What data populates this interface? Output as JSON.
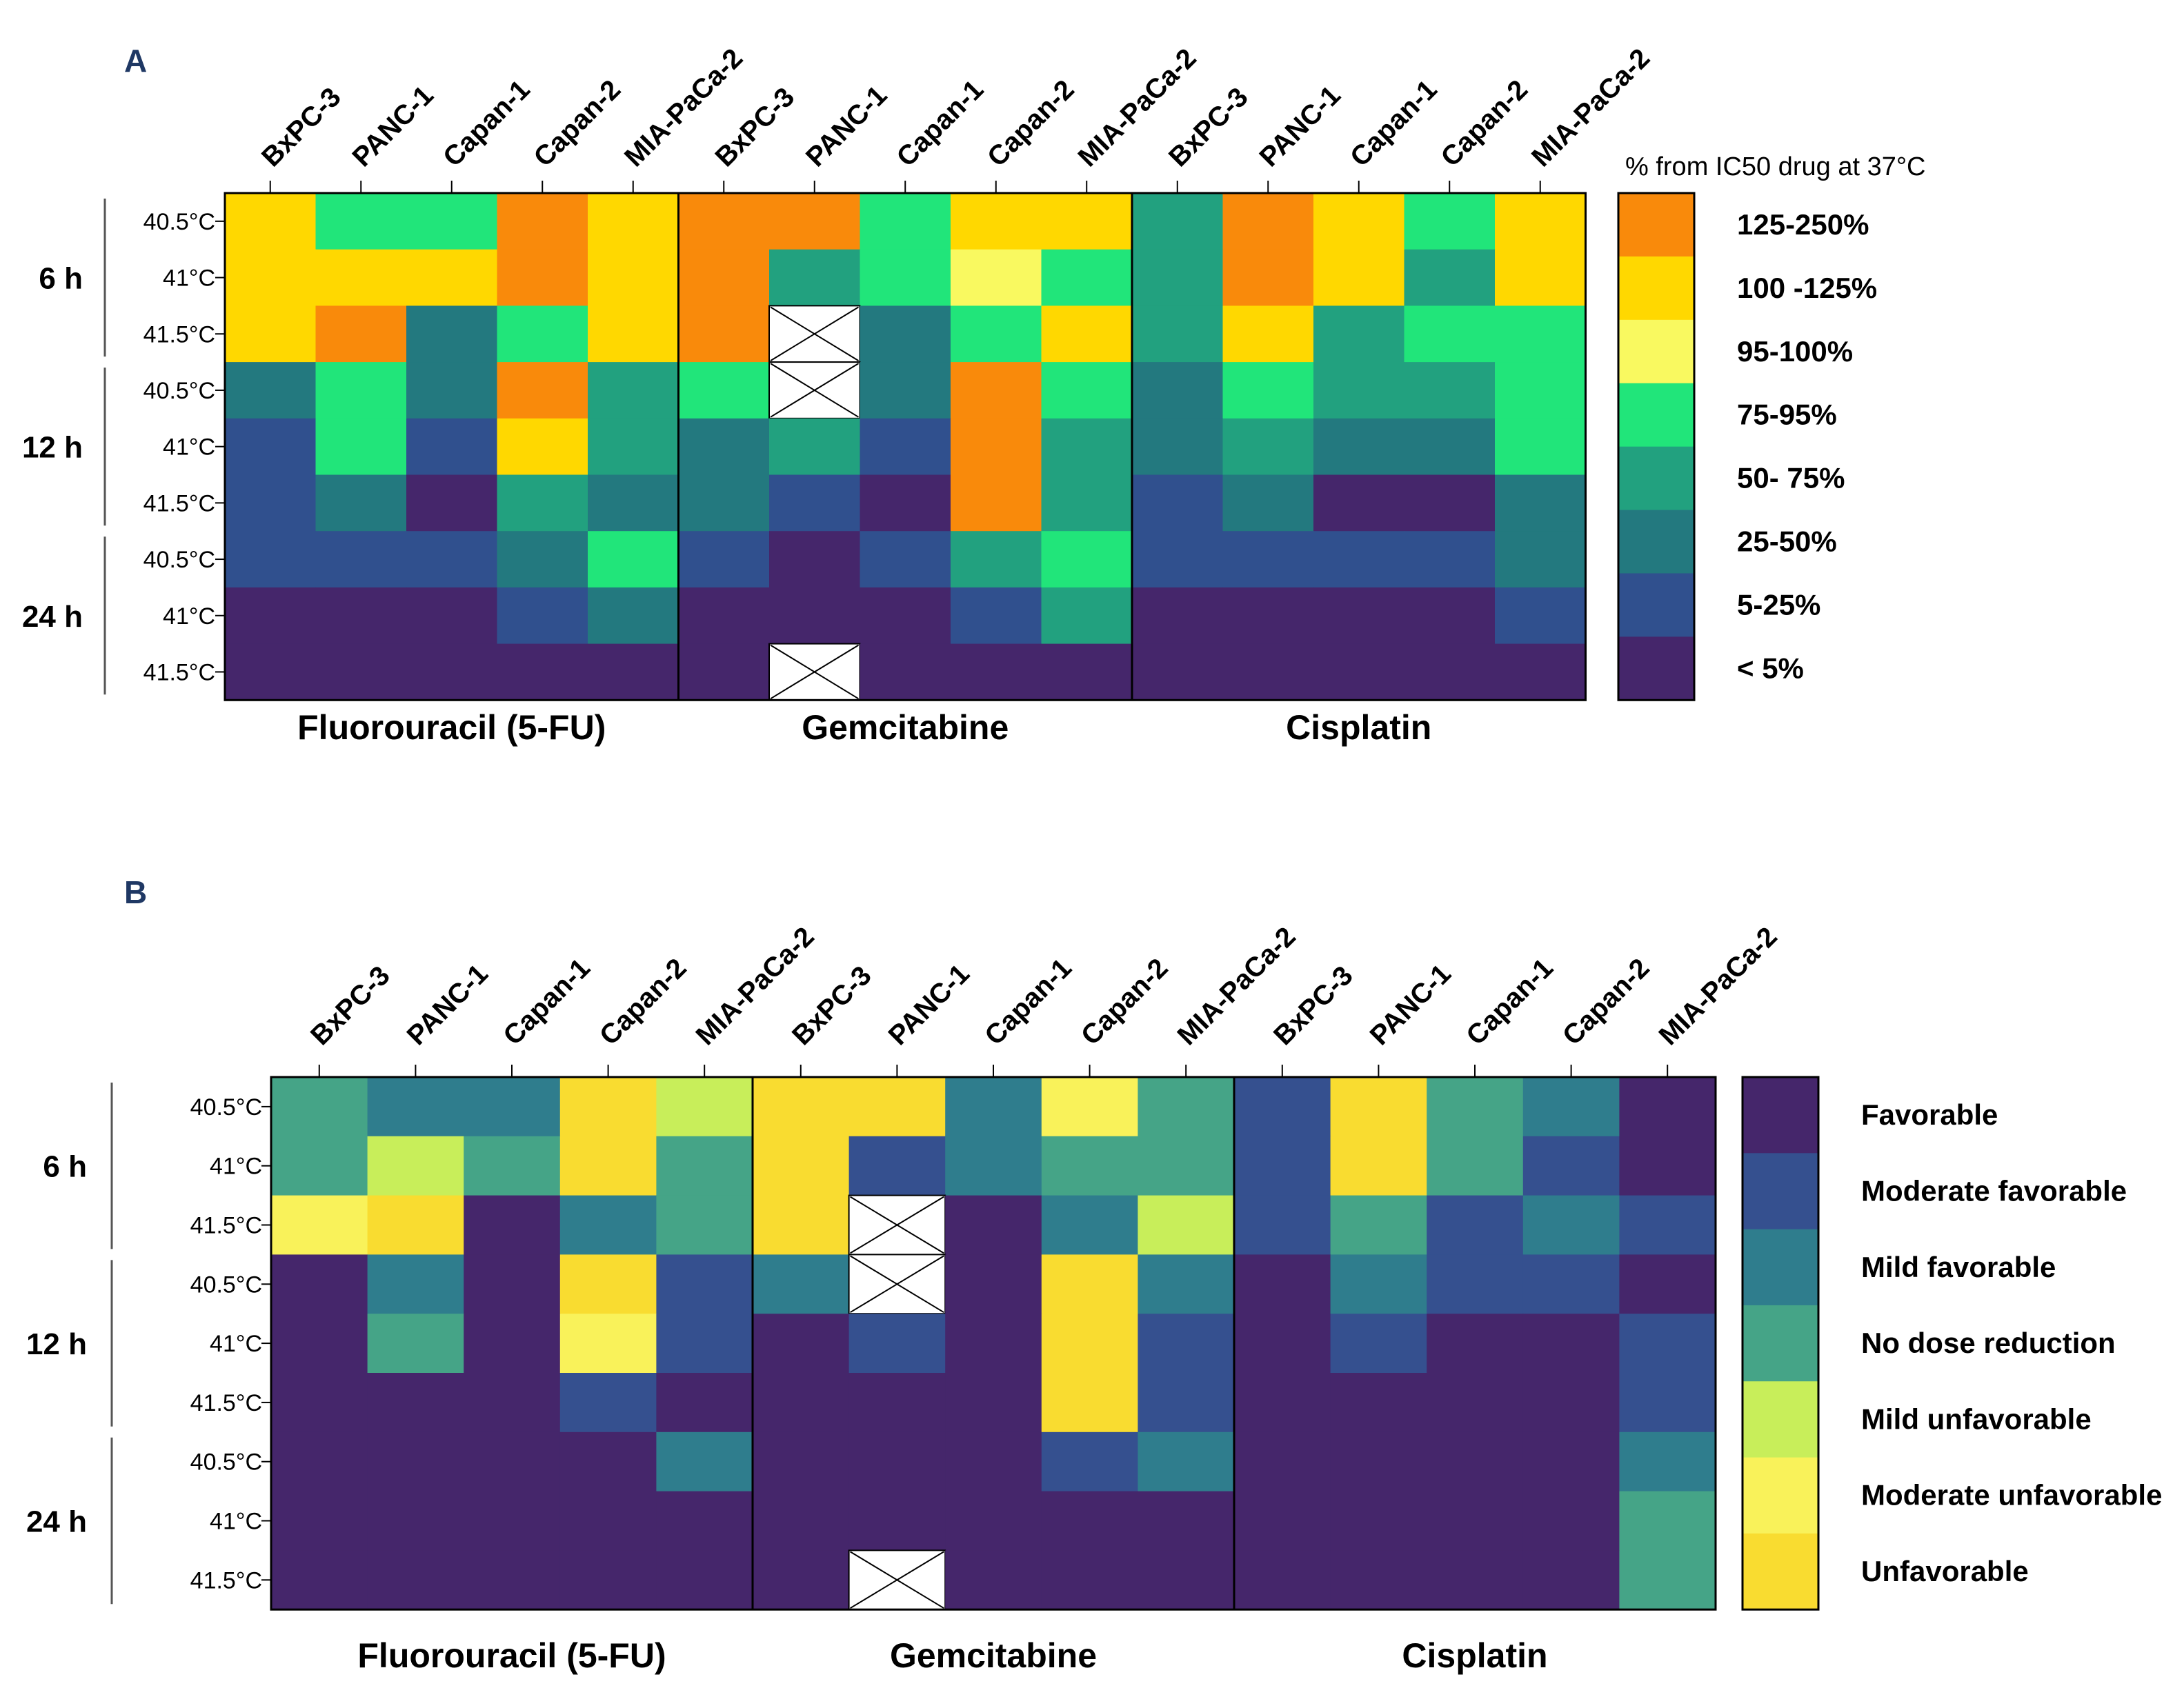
{
  "chart_data": [
    {
      "type": "heatmap",
      "panel": "A",
      "legend_title": "% from IC50 drug at 37°C",
      "legend_categories": [
        "125-250%",
        "100 -125%",
        "95-100%",
        "75-95%",
        "50- 75%",
        "25-50%",
        "5-25%",
        "< 5%"
      ],
      "legend_colors": [
        "#F98A0B",
        "#FFD800",
        "#F9F960",
        "#21E57A",
        "#22A17F",
        "#23797F",
        "#30508E",
        "#45266B"
      ],
      "drugs": [
        "Fluorouracil (5-FU)",
        "Gemcitabine",
        "Cisplatin"
      ],
      "cell_lines": [
        "BxPC-3",
        "PANC-1",
        "Capan-1",
        "Capan-2",
        "MIA-PaCa-2"
      ],
      "time_groups": [
        "6 h",
        "12 h",
        "24 h"
      ],
      "temperatures": [
        "40.5°C",
        "41°C",
        "41.5°C"
      ],
      "columns": [
        "BxPC-3",
        "PANC-1",
        "Capan-1",
        "Capan-2",
        "MIA-PaCa-2",
        "BxPC-3",
        "PANC-1",
        "Capan-1",
        "Capan-2",
        "MIA-PaCa-2",
        "BxPC-3",
        "PANC-1",
        "Capan-1",
        "Capan-2",
        "MIA-PaCa-2"
      ],
      "cells": [
        [
          1,
          3,
          3,
          0,
          1,
          0,
          0,
          3,
          1,
          1,
          4,
          0,
          1,
          3,
          1
        ],
        [
          1,
          1,
          1,
          0,
          1,
          0,
          4,
          3,
          2,
          3,
          4,
          0,
          1,
          4,
          1
        ],
        [
          1,
          0,
          5,
          3,
          1,
          0,
          null,
          5,
          3,
          1,
          4,
          1,
          4,
          3,
          3
        ],
        [
          5,
          3,
          5,
          0,
          4,
          3,
          null,
          5,
          0,
          3,
          5,
          3,
          4,
          4,
          3
        ],
        [
          6,
          3,
          6,
          1,
          4,
          5,
          4,
          6,
          0,
          4,
          5,
          4,
          5,
          5,
          3
        ],
        [
          6,
          5,
          7,
          4,
          5,
          5,
          6,
          7,
          0,
          4,
          6,
          5,
          7,
          7,
          5
        ],
        [
          6,
          6,
          6,
          5,
          3,
          6,
          7,
          6,
          4,
          3,
          6,
          6,
          6,
          6,
          5
        ],
        [
          7,
          7,
          7,
          6,
          5,
          7,
          7,
          7,
          6,
          4,
          7,
          7,
          7,
          7,
          6
        ],
        [
          7,
          7,
          7,
          7,
          7,
          7,
          null,
          7,
          7,
          7,
          7,
          7,
          7,
          7,
          7
        ]
      ],
      "missing_marker": "crossed-out cell (no data)"
    },
    {
      "type": "heatmap",
      "panel": "B",
      "legend_categories": [
        "Favorable",
        "Moderate favorable",
        "Mild favorable",
        "No dose reduction",
        "Mild unfavorable",
        "Moderate unfavorable",
        "Unfavorable"
      ],
      "legend_colors": [
        "#45266B",
        "#35508F",
        "#2F7D8D",
        "#45A487",
        "#C8EE5A",
        "#F9F25A",
        "#F9DC30"
      ],
      "drugs": [
        "Fluorouracil (5-FU)",
        "Gemcitabine",
        "Cisplatin"
      ],
      "cell_lines": [
        "BxPC-3",
        "PANC-1",
        "Capan-1",
        "Capan-2",
        "MIA-PaCa-2"
      ],
      "time_groups": [
        "6 h",
        "12 h",
        "24 h"
      ],
      "temperatures": [
        "40.5°C",
        "41°C",
        "41.5°C"
      ],
      "columns": [
        "BxPC-3",
        "PANC-1",
        "Capan-1",
        "Capan-2",
        "MIA-PaCa-2",
        "BxPC-3",
        "PANC-1",
        "Capan-1",
        "Capan-2",
        "MIA-PaCa-2",
        "BxPC-3",
        "PANC-1",
        "Capan-1",
        "Capan-2",
        "MIA-PaCa-2"
      ],
      "cells": [
        [
          3,
          2,
          2,
          6,
          4,
          6,
          6,
          2,
          5,
          3,
          1,
          6,
          3,
          2,
          0
        ],
        [
          3,
          4,
          3,
          6,
          3,
          6,
          1,
          2,
          3,
          3,
          1,
          6,
          3,
          1,
          0
        ],
        [
          5,
          6,
          0,
          2,
          3,
          6,
          null,
          0,
          2,
          4,
          1,
          3,
          1,
          2,
          1
        ],
        [
          0,
          2,
          0,
          6,
          1,
          2,
          null,
          0,
          6,
          2,
          0,
          2,
          1,
          1,
          0
        ],
        [
          0,
          3,
          0,
          5,
          1,
          0,
          1,
          0,
          6,
          1,
          0,
          1,
          0,
          0,
          1
        ],
        [
          0,
          0,
          0,
          1,
          0,
          0,
          0,
          0,
          6,
          1,
          0,
          0,
          0,
          0,
          1
        ],
        [
          0,
          0,
          0,
          0,
          2,
          0,
          0,
          0,
          1,
          2,
          0,
          0,
          0,
          0,
          2
        ],
        [
          0,
          0,
          0,
          0,
          0,
          0,
          0,
          0,
          0,
          0,
          0,
          0,
          0,
          0,
          3
        ],
        [
          0,
          0,
          0,
          0,
          0,
          0,
          null,
          0,
          0,
          0,
          0,
          0,
          0,
          0,
          3
        ]
      ],
      "missing_marker": "crossed-out cell (no data)"
    }
  ]
}
